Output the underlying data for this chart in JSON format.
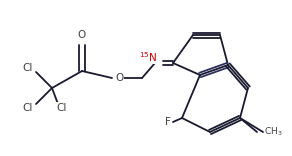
{
  "bg_color": "#ffffff",
  "line_color": "#1a1a2e",
  "bond_color": "#2d2d5e",
  "atom_colors": {
    "Cl": "#404040",
    "O": "#404040",
    "N": "#404040",
    "F": "#404040",
    "15N": "#cc0000"
  },
  "figsize": [
    2.92,
    1.56
  ],
  "dpi": 100
}
